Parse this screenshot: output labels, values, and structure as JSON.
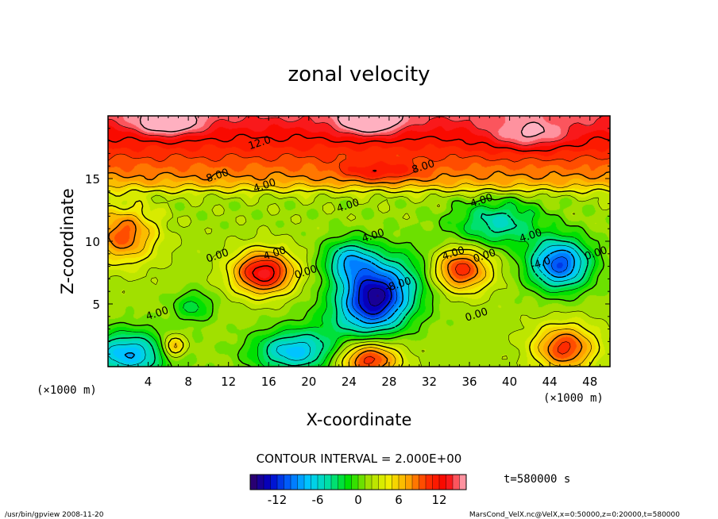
{
  "chart_data": {
    "type": "heatmap",
    "subtype": "filled-contour",
    "title": "zonal velocity",
    "xlabel": "X-coordinate",
    "ylabel": "Z-coordinate",
    "x_unit": "(×1000 m)",
    "y_unit": "(×1000 m)",
    "xlim": [
      0,
      50
    ],
    "ylim": [
      0,
      20
    ],
    "xticks": [
      4,
      8,
      12,
      16,
      20,
      24,
      28,
      32,
      36,
      40,
      44,
      48
    ],
    "yticks": [
      5,
      10,
      15
    ],
    "contour_interval": "CONTOUR INTERVAL = 2.000E+00",
    "contour_labels": [
      {
        "text": "12.0",
        "x": 15.2,
        "z": 17.6
      },
      {
        "text": "8.00",
        "x": 11.0,
        "z": 15.0
      },
      {
        "text": "8.00",
        "x": 31.5,
        "z": 15.7
      },
      {
        "text": "4.00",
        "x": 15.7,
        "z": 14.2
      },
      {
        "text": "4.00",
        "x": 24.0,
        "z": 12.6
      },
      {
        "text": "4.00",
        "x": 37.3,
        "z": 13.0
      },
      {
        "text": "4.00",
        "x": 26.5,
        "z": 10.2
      },
      {
        "text": "4.00",
        "x": 42.2,
        "z": 10.2
      },
      {
        "text": "4.00",
        "x": 16.7,
        "z": 8.8
      },
      {
        "text": "4.00",
        "x": 34.5,
        "z": 8.8
      },
      {
        "text": "4.00",
        "x": 5.0,
        "z": 4.0
      },
      {
        "text": "0.00",
        "x": 11.0,
        "z": 8.6
      },
      {
        "text": "0.00",
        "x": 19.8,
        "z": 7.3
      },
      {
        "text": "0.00",
        "x": 37.6,
        "z": 8.6
      },
      {
        "text": "0.00",
        "x": 36.8,
        "z": 3.9
      },
      {
        "text": "0.00",
        "x": 48.7,
        "z": 8.8
      },
      {
        "text": "-8.00",
        "x": 29.0,
        "z": 6.3
      },
      {
        "text": "-4.0",
        "x": 43.2,
        "z": 8.0
      }
    ],
    "colorbar": {
      "vmin": -16,
      "vmax": 16,
      "ticks": [
        -12,
        -6,
        0,
        6,
        12
      ]
    },
    "time_label": "t=580000 s"
  },
  "colors": {
    "stops": [
      "#320060",
      "#0000c8",
      "#0066ff",
      "#00ccff",
      "#00e0a0",
      "#00e000",
      "#a0e000",
      "#f0f000",
      "#ffaa00",
      "#ff3000",
      "#f80000",
      "#ffb0c0"
    ]
  },
  "footer": {
    "left": "/usr/bin/gpview   2008-11-20",
    "right": "MarsCond_VelX.nc@VelX,x=0:50000,z=0:20000,t=580000"
  }
}
